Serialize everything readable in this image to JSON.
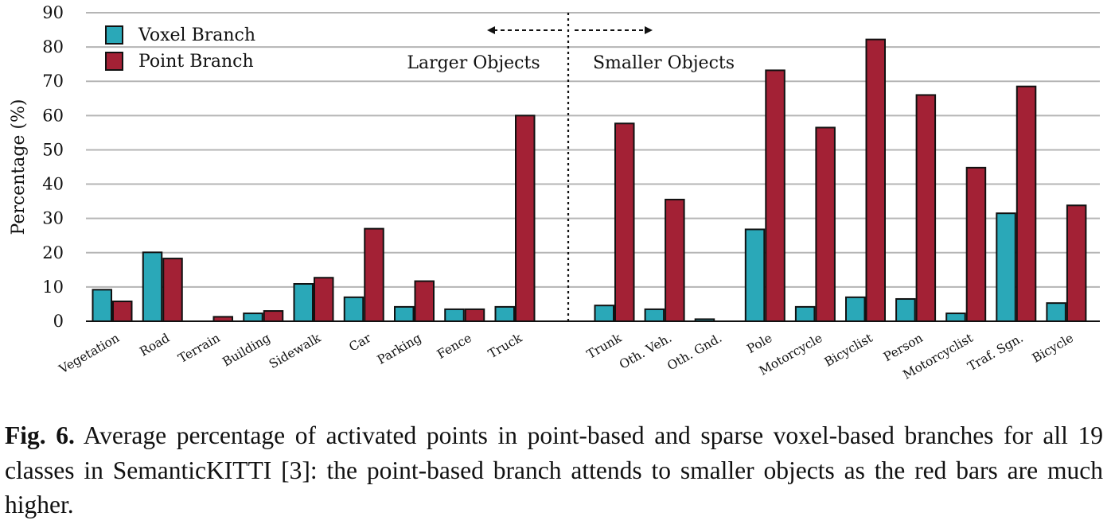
{
  "chart_data": {
    "type": "bar",
    "title": "",
    "ylabel": "Percentage (%)",
    "xlabel": "",
    "ylim": [
      0,
      90
    ],
    "yticks": [
      0,
      10,
      20,
      30,
      40,
      50,
      60,
      70,
      80,
      90
    ],
    "grid": true,
    "legend_position": "top-left",
    "categories": [
      "Vegetation",
      "Road",
      "Terrain",
      "Building",
      "Sidewalk",
      "Car",
      "Parking",
      "Fence",
      "Truck",
      "Trunk",
      "Oth. Veh.",
      "Oth. Gnd.",
      "Pole",
      "Motorcycle",
      "Bicyclist",
      "Person",
      "Motorcyclist",
      "Traf. Sgn.",
      "Bicycle"
    ],
    "series": [
      {
        "name": "Voxel Branch",
        "color": "#2aa8b8",
        "values": [
          9.2,
          20.1,
          0,
          2.3,
          10.9,
          7.0,
          4.2,
          3.5,
          4.2,
          4.6,
          3.5,
          0.6,
          26.8,
          4.2,
          7.0,
          6.5,
          2.3,
          31.5,
          5.3
        ]
      },
      {
        "name": "Point Branch",
        "color": "#a32135",
        "values": [
          5.8,
          18.3,
          1.3,
          3.0,
          12.7,
          27.0,
          11.7,
          3.5,
          60.0,
          57.7,
          35.5,
          0,
          73.2,
          56.5,
          82.2,
          66.0,
          44.8,
          68.5,
          33.8
        ]
      }
    ],
    "annotations": {
      "left_label": "Larger Objects",
      "right_label": "Smaller Objects",
      "divider": "dotted vertical line between Truck and Trunk"
    }
  },
  "caption": {
    "label": "Fig. 6.",
    "text": " Average percentage of activated points in point-based and sparse voxel-based branches for all 19 classes in SemanticKITTI [3]: the point-based branch attends to smaller objects as the red bars are much higher."
  }
}
